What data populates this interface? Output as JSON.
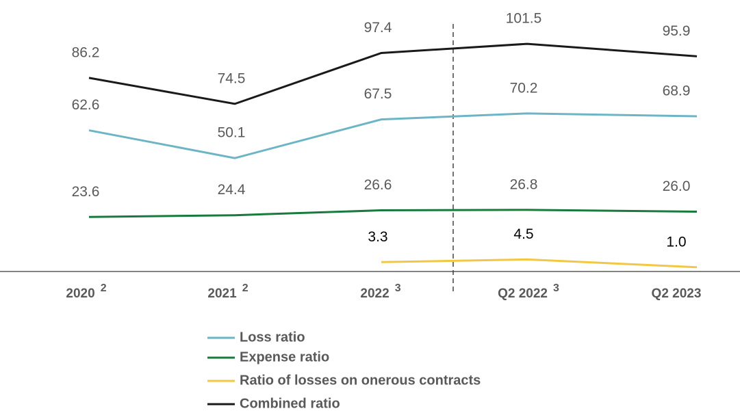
{
  "chart_data": {
    "type": "line",
    "categories": [
      "2020",
      "2021",
      "2022",
      "Q2 2022",
      "Q2 2023"
    ],
    "category_notes": [
      "2",
      "2",
      "3",
      "3",
      null
    ],
    "series": [
      {
        "name": "Loss ratio",
        "color": "#6db5c5",
        "values": [
          62.6,
          50.1,
          67.5,
          70.2,
          68.9
        ]
      },
      {
        "name": "Expense ratio",
        "color": "#187a3c",
        "values": [
          23.6,
          24.4,
          26.6,
          26.8,
          26.0
        ],
        "value_labels": [
          "23.6",
          "24.4",
          "26.6",
          "26.8",
          "26.0"
        ]
      },
      {
        "name": "Ratio of losses on onerous contracts",
        "color": "#f2c744",
        "label_color": "#000000",
        "values": [
          null,
          null,
          3.3,
          4.5,
          1.0
        ],
        "value_labels": [
          null,
          null,
          "3.3",
          "4.5",
          "1.0"
        ]
      },
      {
        "name": "Combined ratio",
        "color": "#1a1a1a",
        "values": [
          86.2,
          74.5,
          97.4,
          101.5,
          95.9
        ]
      }
    ]
  }
}
